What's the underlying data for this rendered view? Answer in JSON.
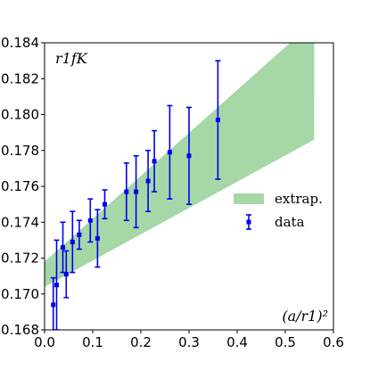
{
  "chart_data": {
    "type": "scatter",
    "title": "",
    "xlabel": "(a/r1)²",
    "ylabel": "r1fK",
    "xlim": [
      0.0,
      0.6
    ],
    "ylim": [
      0.168,
      0.184
    ],
    "xticks": [
      "0.0",
      "0.1",
      "0.2",
      "0.3",
      "0.4",
      "0.5",
      "0.6"
    ],
    "yticks": [
      "0.168",
      "0.170",
      "0.172",
      "0.174",
      "0.176",
      "0.178",
      "0.180",
      "0.182",
      "0.184"
    ],
    "grid": false,
    "legend_position": "right",
    "colors": {
      "data": "#0000ee",
      "band": "#a6d7a6"
    },
    "series": [
      {
        "name": "data",
        "kind": "errorbar",
        "x": [
          0.018,
          0.025,
          0.038,
          0.045,
          0.058,
          0.072,
          0.095,
          0.11,
          0.125,
          0.17,
          0.19,
          0.215,
          0.228,
          0.26,
          0.3,
          0.36
        ],
        "y": [
          0.1694,
          0.1705,
          0.1726,
          0.1711,
          0.1729,
          0.1733,
          0.1741,
          0.1731,
          0.175,
          0.1757,
          0.1757,
          0.1763,
          0.1774,
          0.1779,
          0.1777,
          0.1797
        ],
        "yerr": [
          0.0015,
          0.0025,
          0.0014,
          0.0013,
          0.0017,
          0.0008,
          0.0012,
          0.0016,
          0.0008,
          0.0016,
          0.002,
          0.0017,
          0.0017,
          0.0026,
          0.0027,
          0.0033
        ]
      },
      {
        "name": "extrap.",
        "kind": "band",
        "x": [
          0.0,
          0.56
        ],
        "y_low": [
          0.1704,
          0.1786
        ],
        "y_high": [
          0.1718,
          0.1852
        ]
      }
    ]
  }
}
